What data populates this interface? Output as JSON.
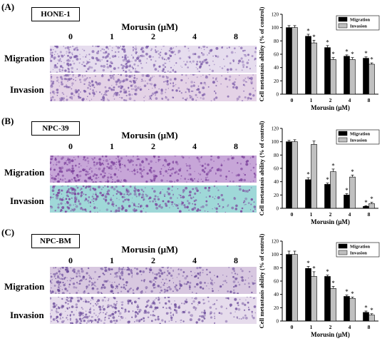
{
  "panels": [
    {
      "letter": "(A)",
      "cell_line": "HONE-1",
      "treatment_title": "Morusin (μM)",
      "concentrations": [
        "0",
        "1",
        "2",
        "4",
        "8"
      ],
      "row_labels": [
        "Migration",
        "Invasion"
      ],
      "micrograph_colors": {
        "migration_bg": "#e6ddee",
        "invasion_bg": "#e4d2e6",
        "stain": "#7a5aa8"
      }
    },
    {
      "letter": "(B)",
      "cell_line": "NPC-39",
      "treatment_title": "Morusin (μM)",
      "concentrations": [
        "0",
        "1",
        "2",
        "4",
        "8"
      ],
      "row_labels": [
        "Migration",
        "Invasion"
      ],
      "micrograph_colors": {
        "migration_bg": "#c7a6d8",
        "invasion_bg": "#9fd8d8",
        "stain": "#7a3e9a"
      }
    },
    {
      "letter": "(C)",
      "cell_line": "NPC-BM",
      "treatment_title": "Morusin (μM)",
      "concentrations": [
        "0",
        "1",
        "2",
        "4",
        "8"
      ],
      "row_labels": [
        "Migration",
        "Invasion"
      ],
      "micrograph_colors": {
        "migration_bg": "#d8c8e0",
        "invasion_bg": "#e6dcec",
        "stain": "#6a4a9a"
      }
    }
  ],
  "chart_data": [
    {
      "type": "bar",
      "categories": [
        "0",
        "1",
        "2",
        "4",
        "8"
      ],
      "xlabel": "Morusin (μM)",
      "ylabel": "Cell metastasis ability (% of control)",
      "ylim": [
        0,
        120
      ],
      "yticks": [
        "0",
        "20",
        "40",
        "60",
        "80",
        "100",
        "120"
      ],
      "legend_position": "top-right",
      "series": [
        {
          "name": "Migration",
          "color": "#000000",
          "values": [
            100,
            87,
            70,
            57,
            54
          ],
          "errors": [
            3,
            3,
            3,
            2,
            2
          ]
        },
        {
          "name": "Invasion",
          "color": "#c0c0c0",
          "values": [
            100,
            77,
            52,
            52,
            45
          ],
          "errors": [
            3,
            4,
            3,
            3,
            2
          ]
        }
      ],
      "significance": [
        [
          "",
          "*",
          "*",
          "*",
          "*"
        ],
        [
          "",
          "*",
          "*",
          "*",
          "*"
        ]
      ]
    },
    {
      "type": "bar",
      "categories": [
        "0",
        "1",
        "2",
        "4",
        "8"
      ],
      "xlabel": "Morusin (μM)",
      "ylabel": "Cell metastasis ability (% of control)",
      "ylim": [
        0,
        120
      ],
      "yticks": [
        "0",
        "20",
        "40",
        "60",
        "80",
        "100",
        "120"
      ],
      "legend_position": "top-right",
      "series": [
        {
          "name": "Migration",
          "color": "#000000",
          "values": [
            100,
            43,
            36,
            20,
            3
          ],
          "errors": [
            2,
            3,
            2,
            2,
            1
          ]
        },
        {
          "name": "Invasion",
          "color": "#c0c0c0",
          "values": [
            100,
            96,
            55,
            47,
            7
          ],
          "errors": [
            3,
            5,
            4,
            3,
            2
          ]
        }
      ],
      "significance": [
        [
          "",
          "*",
          "*",
          "*",
          "*"
        ],
        [
          "",
          "",
          "*",
          "*",
          "*"
        ]
      ]
    },
    {
      "type": "bar",
      "categories": [
        "0",
        "1",
        "2",
        "4",
        "8"
      ],
      "xlabel": "Morusin (μM)",
      "ylabel": "Cell metastasis ability (% of control)",
      "ylim": [
        0,
        120
      ],
      "yticks": [
        "0",
        "20",
        "40",
        "60",
        "80",
        "100",
        "120"
      ],
      "legend_position": "top-right",
      "series": [
        {
          "name": "Migration",
          "color": "#000000",
          "values": [
            100,
            79,
            67,
            37,
            13
          ],
          "errors": [
            5,
            3,
            2,
            2,
            2
          ]
        },
        {
          "name": "Invasion",
          "color": "#c0c0c0",
          "values": [
            100,
            67,
            49,
            34,
            9
          ],
          "errors": [
            5,
            7,
            3,
            2,
            2
          ]
        }
      ],
      "significance": [
        [
          "",
          "*",
          "*",
          "*",
          "*"
        ],
        [
          "",
          "*",
          "*",
          "*",
          "*"
        ]
      ]
    }
  ]
}
